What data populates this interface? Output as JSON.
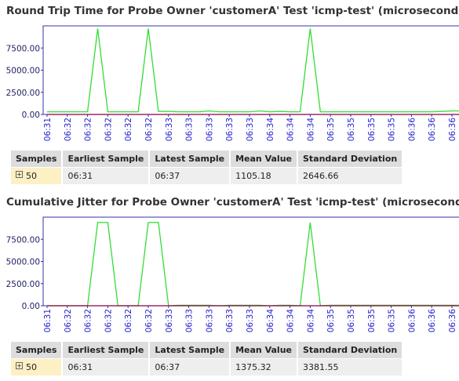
{
  "chart_data": [
    {
      "type": "line",
      "title": "Round Trip Time for Probe Owner 'customerA' Test 'icmp-test' (microseconds)",
      "categories": [
        "06:31",
        null,
        "06:32",
        null,
        "06:32",
        null,
        "06:32",
        null,
        "06:32",
        null,
        "06:32",
        null,
        "06:33",
        null,
        "06:33",
        null,
        "06:33",
        null,
        "06:33",
        null,
        "06:33",
        null,
        "06:34",
        null,
        "06:34",
        null,
        "06:34",
        null,
        "06:35",
        null,
        "06:35",
        null,
        "06:35",
        null,
        "06:35",
        null,
        "06:36",
        null,
        "06:36",
        null,
        "06:36",
        null
      ],
      "series": [
        {
          "color": "#33dd33",
          "values": [
            300,
            300,
            300,
            300,
            300,
            9700,
            300,
            300,
            300,
            300,
            9700,
            350,
            350,
            300,
            300,
            300,
            400,
            300,
            300,
            300,
            300,
            400,
            300,
            350,
            300,
            300,
            9700,
            300,
            300,
            300,
            300,
            300,
            300,
            300,
            300,
            300,
            300,
            300,
            300,
            350,
            400,
            400
          ]
        },
        {
          "color": "#880044",
          "values": [
            0,
            0,
            0,
            0,
            0,
            0,
            0,
            0,
            0,
            0,
            0,
            0,
            0,
            0,
            0,
            0,
            0,
            0,
            0,
            0,
            0,
            0,
            0,
            0,
            0,
            0,
            0,
            0,
            0,
            0,
            0,
            0,
            0,
            0,
            0,
            0,
            0,
            0,
            0,
            0,
            0,
            0
          ]
        }
      ],
      "ylim": [
        0,
        10000
      ],
      "yticks": [
        {
          "value": 0,
          "label": "0.00"
        },
        {
          "value": 2500,
          "label": "2500.00"
        },
        {
          "value": 5000,
          "label": "5000.00"
        },
        {
          "value": 7500,
          "label": "7500.00"
        }
      ]
    },
    {
      "type": "line",
      "title": "Cumulative Jitter for Probe Owner 'customerA' Test 'icmp-test' (microseconds)",
      "categories": [
        "06:31",
        null,
        "06:32",
        null,
        "06:32",
        null,
        "06:32",
        null,
        "06:32",
        null,
        "06:32",
        null,
        "06:33",
        null,
        "06:33",
        null,
        "06:33",
        null,
        "06:33",
        null,
        "06:33",
        null,
        "06:34",
        null,
        "06:34",
        null,
        "06:34",
        null,
        "06:35",
        null,
        "06:35",
        null,
        "06:35",
        null,
        "06:35",
        null,
        "06:36",
        null,
        "06:36",
        null,
        "06:36",
        null
      ],
      "series": [
        {
          "color": "#33dd33",
          "values": [
            0,
            0,
            0,
            0,
            0,
            9400,
            9400,
            0,
            0,
            0,
            9400,
            9400,
            0,
            50,
            50,
            50,
            50,
            0,
            50,
            50,
            50,
            50,
            0,
            50,
            50,
            0,
            9400,
            0,
            50,
            50,
            50,
            50,
            50,
            50,
            50,
            50,
            50,
            50,
            50,
            50,
            50,
            50
          ]
        },
        {
          "color": "#880044",
          "values": [
            0,
            0,
            0,
            0,
            0,
            0,
            0,
            0,
            0,
            0,
            0,
            0,
            0,
            0,
            0,
            0,
            0,
            0,
            0,
            0,
            0,
            0,
            0,
            0,
            0,
            0,
            0,
            0,
            0,
            0,
            0,
            0,
            0,
            0,
            0,
            0,
            0,
            0,
            0,
            0,
            0,
            0
          ]
        }
      ],
      "ylim": [
        0,
        10000
      ],
      "yticks": [
        {
          "value": 0,
          "label": "0.00"
        },
        {
          "value": 2500,
          "label": "2500.00"
        },
        {
          "value": 5000,
          "label": "5000.00"
        },
        {
          "value": 7500,
          "label": "7500.00"
        }
      ]
    }
  ],
  "tables": [
    {
      "header": [
        "Samples",
        "Earliest Sample",
        "Latest Sample",
        "Mean Value",
        "Standard Deviation"
      ],
      "rows": [
        [
          "50",
          "06:31",
          "06:37",
          "1105.18",
          "2646.66"
        ]
      ]
    },
    {
      "header": [
        "Samples",
        "Earliest Sample",
        "Latest Sample",
        "Mean Value",
        "Standard Deviation"
      ],
      "rows": [
        [
          "50",
          "06:31",
          "06:37",
          "1375.32",
          "3381.55"
        ]
      ]
    }
  ]
}
